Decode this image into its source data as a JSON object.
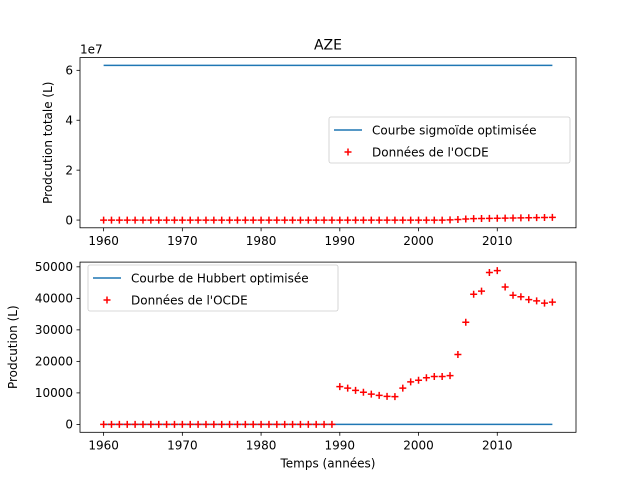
{
  "chart_data": [
    {
      "type": "line",
      "title": "AZE",
      "xlabel": "",
      "ylabel": "Prodcution totale (L)",
      "offset_label": "1e7",
      "xlim": [
        1957,
        2020
      ],
      "ylim": [
        -0.31,
        6.51
      ],
      "yscale_factor": 10000000,
      "xticks": [
        1960,
        1970,
        1980,
        1990,
        2000,
        2010
      ],
      "yticks": [
        0,
        2,
        4,
        6
      ],
      "legend_position": "center-right",
      "series": [
        {
          "name": "Courbe sigmoïde optimisée",
          "kind": "line",
          "color": "#1f77b4",
          "x": [
            1960,
            2017
          ],
          "y": [
            6.2,
            6.2
          ]
        },
        {
          "name": "Données de l'OCDE",
          "kind": "scatter",
          "marker": "+",
          "color": "#ff0000",
          "x": [
            1960,
            1961,
            1962,
            1963,
            1964,
            1965,
            1966,
            1967,
            1968,
            1969,
            1970,
            1971,
            1972,
            1973,
            1974,
            1975,
            1976,
            1977,
            1978,
            1979,
            1980,
            1981,
            1982,
            1983,
            1984,
            1985,
            1986,
            1987,
            1988,
            1989,
            1990,
            1991,
            1992,
            1993,
            1994,
            1995,
            1996,
            1997,
            1998,
            1999,
            2000,
            2001,
            2002,
            2003,
            2004,
            2005,
            2006,
            2007,
            2008,
            2009,
            2010,
            2011,
            2012,
            2013,
            2014,
            2015,
            2016,
            2017
          ],
          "y": [
            0,
            0,
            0,
            0,
            0,
            0,
            0,
            0,
            0,
            0,
            0,
            0,
            0,
            0,
            0,
            0,
            0,
            0,
            0,
            0,
            0,
            0,
            0,
            0,
            0,
            0,
            0,
            0,
            0,
            0,
            0,
            0,
            0,
            0,
            0,
            0,
            0,
            0,
            0,
            0,
            0,
            0,
            0,
            0,
            0.01,
            0.025,
            0.045,
            0.06,
            0.065,
            0.07,
            0.075,
            0.08,
            0.085,
            0.09,
            0.095,
            0.1,
            0.105,
            0.11
          ]
        }
      ]
    },
    {
      "type": "line",
      "title": "",
      "xlabel": "Temps (années)",
      "ylabel": "Prodcution (L)",
      "xlim": [
        1957,
        2020
      ],
      "ylim": [
        -2500,
        51500
      ],
      "xticks": [
        1960,
        1970,
        1980,
        1990,
        2000,
        2010
      ],
      "yticks": [
        0,
        10000,
        20000,
        30000,
        40000,
        50000
      ],
      "legend_position": "upper-left",
      "series": [
        {
          "name": "Courbe de Hubbert optimisée",
          "kind": "line",
          "color": "#1f77b4",
          "x": [
            1960,
            2017
          ],
          "y": [
            0,
            0
          ]
        },
        {
          "name": "Données de l'OCDE",
          "kind": "scatter",
          "marker": "+",
          "color": "#ff0000",
          "x": [
            1960,
            1961,
            1962,
            1963,
            1964,
            1965,
            1966,
            1967,
            1968,
            1969,
            1970,
            1971,
            1972,
            1973,
            1974,
            1975,
            1976,
            1977,
            1978,
            1979,
            1980,
            1981,
            1982,
            1983,
            1984,
            1985,
            1986,
            1987,
            1988,
            1989,
            1990,
            1991,
            1992,
            1993,
            1994,
            1995,
            1996,
            1997,
            1998,
            1999,
            2000,
            2001,
            2002,
            2003,
            2004,
            2005,
            2006,
            2007,
            2008,
            2009,
            2010,
            2011,
            2012,
            2013,
            2014,
            2015,
            2016,
            2017
          ],
          "y": [
            0,
            0,
            0,
            0,
            0,
            0,
            0,
            0,
            0,
            0,
            0,
            0,
            0,
            0,
            0,
            0,
            0,
            0,
            0,
            0,
            0,
            0,
            0,
            0,
            0,
            0,
            0,
            0,
            0,
            0,
            12000,
            11500,
            10800,
            10200,
            9600,
            9200,
            8900,
            8800,
            11500,
            13500,
            14000,
            14800,
            15200,
            15200,
            15500,
            22200,
            32400,
            41300,
            42300,
            48200,
            48800,
            43600,
            41000,
            40500,
            39600,
            39200,
            38500,
            38800
          ]
        }
      ]
    }
  ]
}
